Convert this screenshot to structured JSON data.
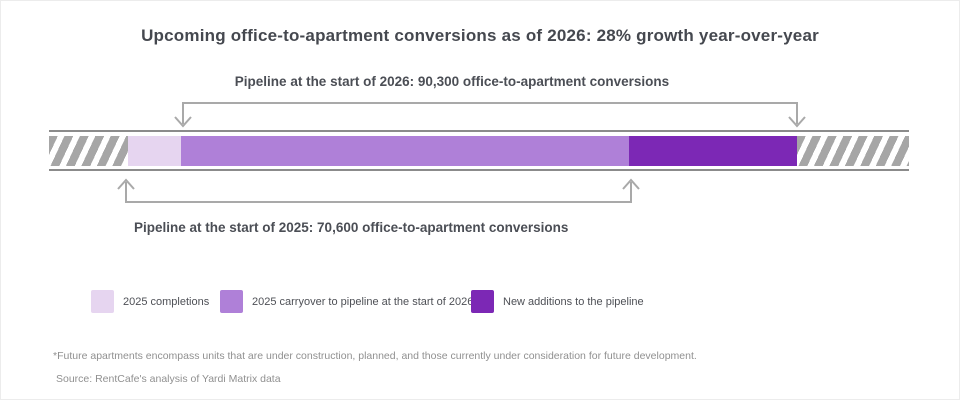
{
  "chart_data": {
    "type": "stacked-horizontal-bar",
    "title": "Upcoming office-to-apartment conversions as of 2026: 28% growth year-over-year",
    "growth_year_over_year_pct": 28,
    "segments": [
      {
        "name": "2025 completions",
        "color": "#e6d5f0",
        "width_pct": 6.16
      },
      {
        "name": "2025 carryover to pipeline at the start of 2026",
        "color": "#af80d8",
        "width_pct": 52.09
      },
      {
        "name": "New additions to the pipeline",
        "color": "#7c28b5",
        "width_pct": 19.53
      }
    ],
    "hatch_left_pct": 9.19,
    "hatch_right_pct": 13.03,
    "annotations": [
      {
        "label": "Pipeline at the start of 2026: 90,300 office-to-apartment conversions",
        "value": 90300,
        "spans": [
          "2025 carryover to pipeline at the start of 2026",
          "New additions to the pipeline"
        ]
      },
      {
        "label": "Pipeline at the start of 2025: 70,600 office-to-apartment conversions",
        "value": 70600,
        "spans": [
          "2025 completions",
          "2025 carryover to pipeline at the start of 2026"
        ]
      }
    ],
    "legend_position": "bottom-left"
  },
  "notes": {
    "footnote": "*Future apartments encompass units that are under construction, planned, and those currently under consideration for future development.",
    "source": "Source: RentCafe's analysis of Yardi Matrix data"
  }
}
